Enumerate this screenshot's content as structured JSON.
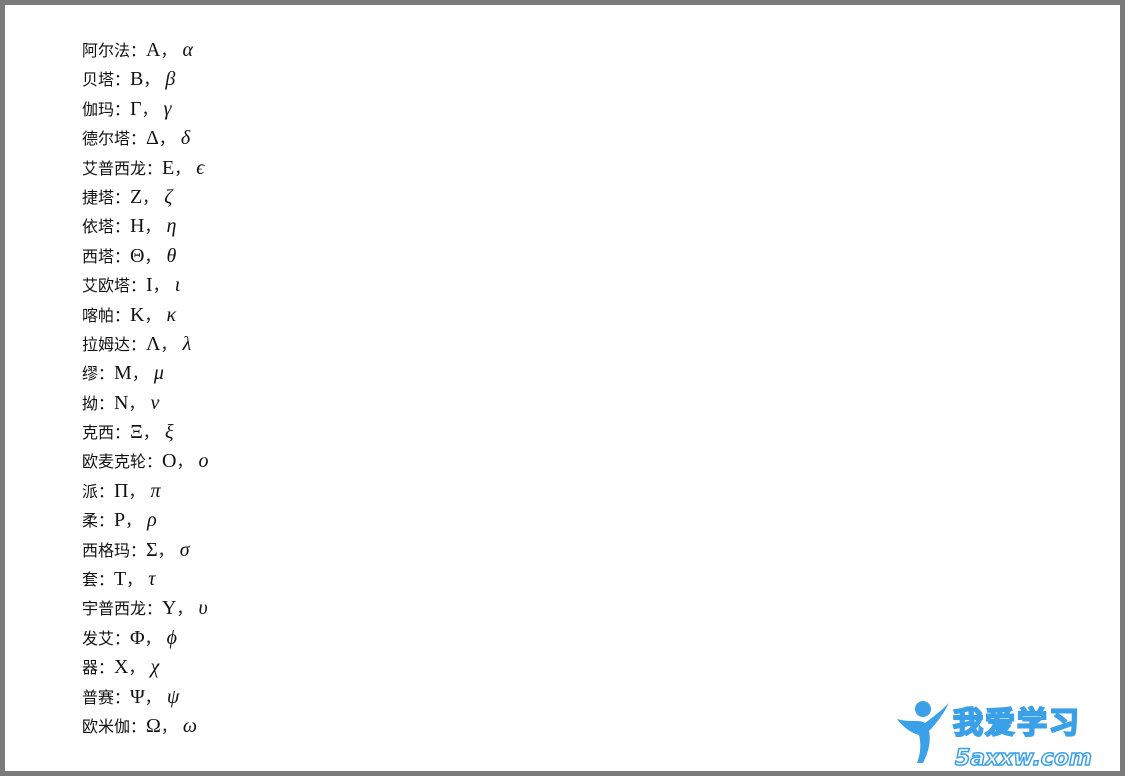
{
  "separator": "：",
  "comma": "，",
  "letters": [
    {
      "name": "阿尔法",
      "upper": "A",
      "lower": "α"
    },
    {
      "name": "贝塔",
      "upper": "B",
      "lower": "β"
    },
    {
      "name": "伽玛",
      "upper": "Γ",
      "lower": "γ"
    },
    {
      "name": "德尔塔",
      "upper": "Δ",
      "lower": "δ"
    },
    {
      "name": "艾普西龙",
      "upper": "E",
      "lower": "ϵ"
    },
    {
      "name": "捷塔",
      "upper": "Z",
      "lower": "ζ"
    },
    {
      "name": "依塔",
      "upper": "H",
      "lower": "η"
    },
    {
      "name": "西塔",
      "upper": "Θ",
      "lower": "θ"
    },
    {
      "name": "艾欧塔",
      "upper": "I",
      "lower": "ι"
    },
    {
      "name": "喀帕",
      "upper": "K",
      "lower": "κ"
    },
    {
      "name": "拉姆达",
      "upper": "Λ",
      "lower": "λ"
    },
    {
      "name": "缪",
      "upper": "M",
      "lower": "μ"
    },
    {
      "name": "拗",
      "upper": "N",
      "lower": "ν"
    },
    {
      "name": "克西",
      "upper": "Ξ",
      "lower": "ξ"
    },
    {
      "name": "欧麦克轮",
      "upper": "O",
      "lower": "o"
    },
    {
      "name": "派",
      "upper": "Π",
      "lower": "π"
    },
    {
      "name": "柔",
      "upper": "P",
      "lower": "ρ"
    },
    {
      "name": "西格玛",
      "upper": "Σ",
      "lower": "σ"
    },
    {
      "name": "套",
      "upper": "T",
      "lower": "τ"
    },
    {
      "name": "宇普西龙",
      "upper": "Υ",
      "lower": "υ"
    },
    {
      "name": "发艾",
      "upper": "Φ",
      "lower": "ϕ"
    },
    {
      "name": "器",
      "upper": "X",
      "lower": "χ"
    },
    {
      "name": "普赛",
      "upper": "Ψ",
      "lower": "ψ"
    },
    {
      "name": "欧米伽",
      "upper": "Ω",
      "lower": "ω"
    }
  ],
  "watermark": {
    "logo_text": "我爱学习",
    "domain_text": "5axxw.com",
    "colors": {
      "primary": "#3aa0e8",
      "accent": "#1f7fd0",
      "light": "#bfe3fb"
    }
  }
}
